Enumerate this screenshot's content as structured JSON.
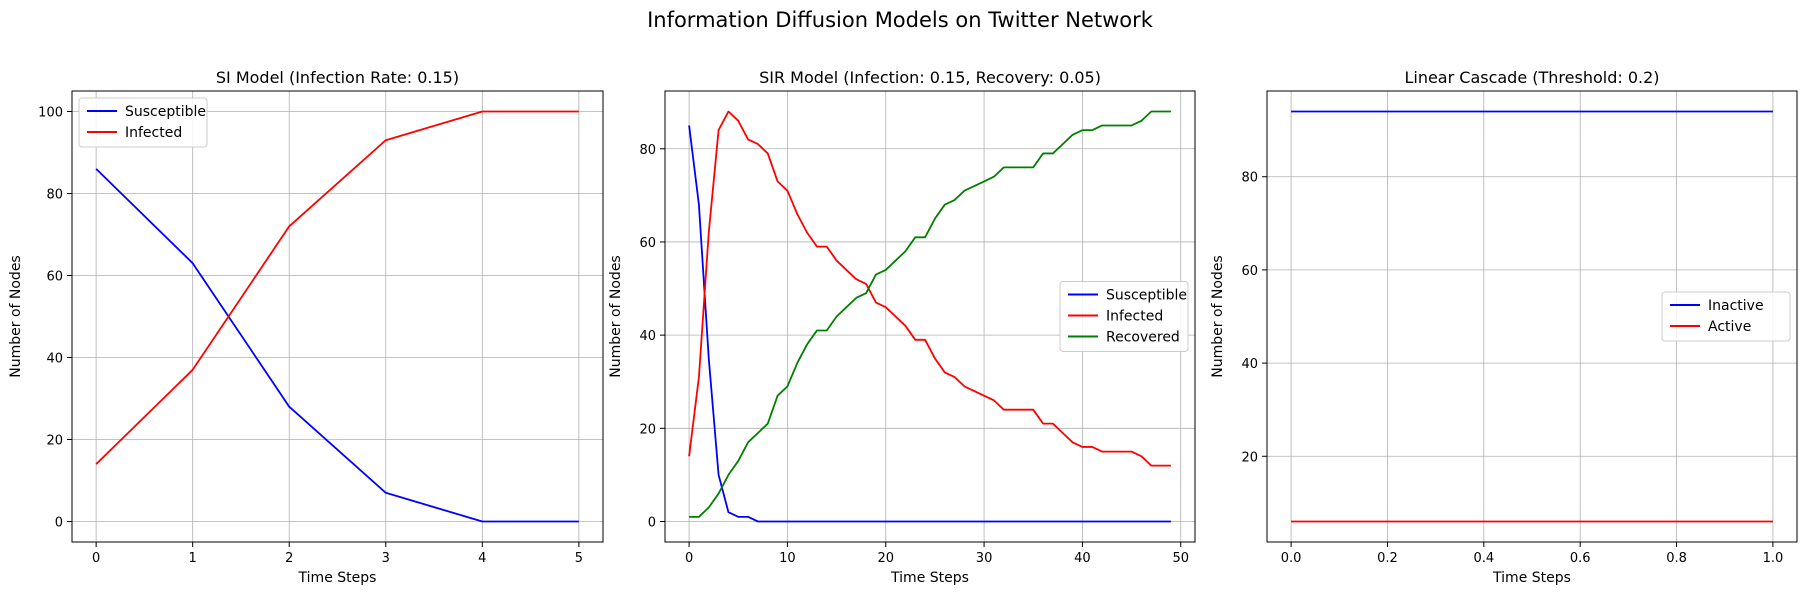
{
  "figure": {
    "title": "Information Diffusion Models on Twitter Network"
  },
  "chart_data": [
    {
      "type": "line",
      "title": "SI Model (Infection Rate: 0.15)",
      "xlabel": "Time Steps",
      "ylabel": "Number of Nodes",
      "xlim": [
        -0.25,
        5.25
      ],
      "ylim": [
        -5,
        105
      ],
      "xticks": [
        0,
        1,
        2,
        3,
        4,
        5
      ],
      "xtick_labels": [
        "0",
        "1",
        "2",
        "3",
        "4",
        "5"
      ],
      "yticks": [
        0,
        20,
        40,
        60,
        80,
        100
      ],
      "ytick_labels": [
        "0",
        "20",
        "40",
        "60",
        "80",
        "100"
      ],
      "grid": true,
      "legend": "upper-left",
      "x": [
        0,
        1,
        2,
        3,
        4,
        5
      ],
      "series": [
        {
          "name": "Susceptible",
          "color": "#0000ff",
          "values": [
            86,
            63,
            28,
            7,
            0,
            0
          ]
        },
        {
          "name": "Infected",
          "color": "#ff0000",
          "values": [
            14,
            37,
            72,
            93,
            100,
            100
          ]
        }
      ]
    },
    {
      "type": "line",
      "title": "SIR Model (Infection: 0.15, Recovery: 0.05)",
      "xlabel": "Time Steps",
      "ylabel": "Number of Nodes",
      "xlim": [
        -2.45,
        51.45
      ],
      "ylim": [
        -4.4,
        92.4
      ],
      "xticks": [
        0,
        10,
        20,
        30,
        40,
        50
      ],
      "xtick_labels": [
        "0",
        "10",
        "20",
        "30",
        "40",
        "50"
      ],
      "yticks": [
        0,
        20,
        40,
        60,
        80
      ],
      "ytick_labels": [
        "0",
        "20",
        "40",
        "60",
        "80"
      ],
      "grid": true,
      "legend": "center-right",
      "x": [
        0,
        1,
        2,
        3,
        4,
        5,
        6,
        7,
        8,
        9,
        10,
        11,
        12,
        13,
        14,
        15,
        16,
        17,
        18,
        19,
        20,
        21,
        22,
        23,
        24,
        25,
        26,
        27,
        28,
        29,
        30,
        31,
        32,
        33,
        34,
        35,
        36,
        37,
        38,
        39,
        40,
        41,
        42,
        43,
        44,
        45,
        46,
        47,
        48,
        49
      ],
      "series": [
        {
          "name": "Susceptible",
          "color": "#0000ff",
          "values": [
            85,
            68,
            35,
            10,
            2,
            1,
            1,
            0,
            0,
            0,
            0,
            0,
            0,
            0,
            0,
            0,
            0,
            0,
            0,
            0,
            0,
            0,
            0,
            0,
            0,
            0,
            0,
            0,
            0,
            0,
            0,
            0,
            0,
            0,
            0,
            0,
            0,
            0,
            0,
            0,
            0,
            0,
            0,
            0,
            0,
            0,
            0,
            0,
            0,
            0
          ]
        },
        {
          "name": "Infected",
          "color": "#ff0000",
          "values": [
            14,
            31,
            62,
            84,
            88,
            86,
            82,
            81,
            79,
            73,
            71,
            66,
            62,
            59,
            59,
            56,
            54,
            52,
            51,
            47,
            46,
            44,
            42,
            39,
            39,
            35,
            32,
            31,
            29,
            28,
            27,
            26,
            24,
            24,
            24,
            24,
            21,
            21,
            19,
            17,
            16,
            16,
            15,
            15,
            15,
            15,
            14,
            12,
            12,
            12
          ]
        },
        {
          "name": "Recovered",
          "color": "#008000",
          "values": [
            1,
            1,
            3,
            6,
            10,
            13,
            17,
            19,
            21,
            27,
            29,
            34,
            38,
            41,
            41,
            44,
            46,
            48,
            49,
            53,
            54,
            56,
            58,
            61,
            61,
            65,
            68,
            69,
            71,
            72,
            73,
            74,
            76,
            76,
            76,
            76,
            79,
            79,
            81,
            83,
            84,
            84,
            85,
            85,
            85,
            85,
            86,
            88,
            88,
            88
          ]
        }
      ]
    },
    {
      "type": "line",
      "title": "Linear Cascade (Threshold: 0.2)",
      "xlabel": "Time Steps",
      "ylabel": "Number of Nodes",
      "xlim": [
        -0.05,
        1.05
      ],
      "ylim": [
        1.6,
        98.4
      ],
      "xticks": [
        0,
        0.2,
        0.4,
        0.6,
        0.8,
        1.0
      ],
      "xtick_labels": [
        "0.0",
        "0.2",
        "0.4",
        "0.6",
        "0.8",
        "1.0"
      ],
      "yticks": [
        20,
        40,
        60,
        80
      ],
      "ytick_labels": [
        "20",
        "40",
        "60",
        "80"
      ],
      "grid": true,
      "legend": "center-right",
      "x": [
        0,
        1
      ],
      "series": [
        {
          "name": "Inactive",
          "color": "#0000ff",
          "values": [
            94,
            94
          ]
        },
        {
          "name": "Active",
          "color": "#ff0000",
          "values": [
            6,
            6
          ]
        }
      ]
    }
  ]
}
